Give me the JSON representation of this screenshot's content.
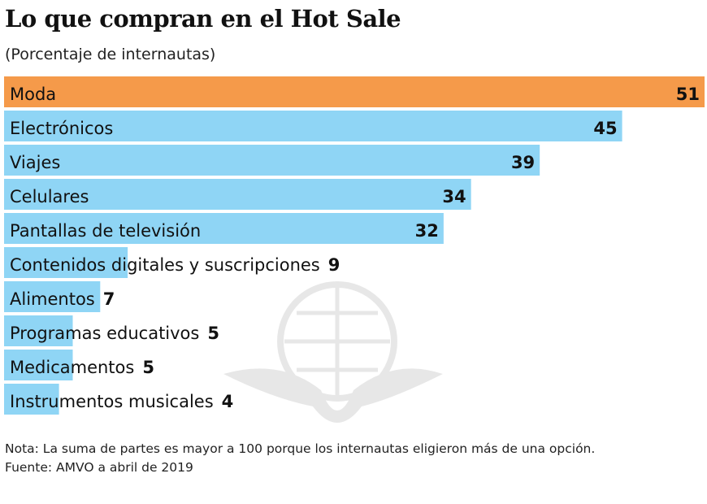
{
  "title": "Lo que compran en el Hot Sale",
  "subtitle": "(Porcentaje de internautas)",
  "chart_data": {
    "type": "bar",
    "orientation": "horizontal",
    "title": "Lo que compran en el Hot Sale",
    "subtitle": "(Porcentaje de internautas)",
    "categories": [
      "Moda",
      "Electrónicos",
      "Viajes",
      "Celulares",
      "Pantallas de televisión",
      "Contenidos digitales y suscripciones",
      "Alimentos",
      "Programas educativos",
      "Medicamentos",
      "Instrumentos musicales"
    ],
    "values": [
      51,
      45,
      39,
      34,
      32,
      9,
      7,
      5,
      5,
      4
    ],
    "highlight_color": "#f59a4a",
    "bar_color": "#8fd5f5",
    "xlim": [
      0,
      51
    ],
    "grid": false
  },
  "footer": {
    "note": "Nota: La suma de partes es mayor a 100 porque los internautas eligieron más de una opción.",
    "source": "Fuente: AMVO a abril de 2019"
  }
}
